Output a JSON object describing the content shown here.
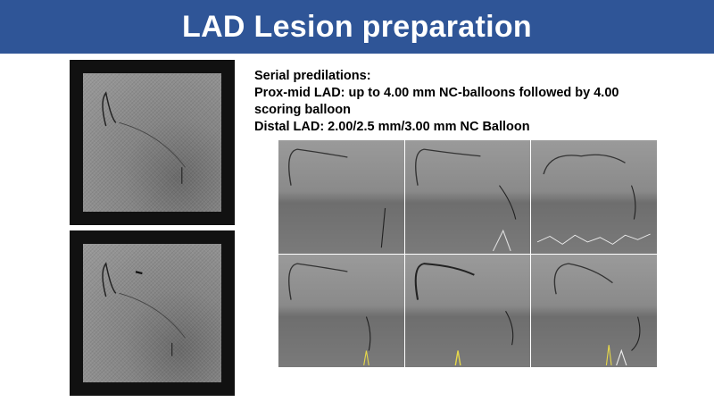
{
  "slide": {
    "title": "LAD Lesion preparation",
    "title_bar_color": "#2f5597",
    "text_lines": [
      "Serial predilations:",
      "Prox-mid LAD: up to 4.00 mm NC-balloons followed by 4.00",
      "scoring balloon",
      "Distal LAD: 2.00/2.5 mm/3.00 mm NC Balloon"
    ]
  }
}
